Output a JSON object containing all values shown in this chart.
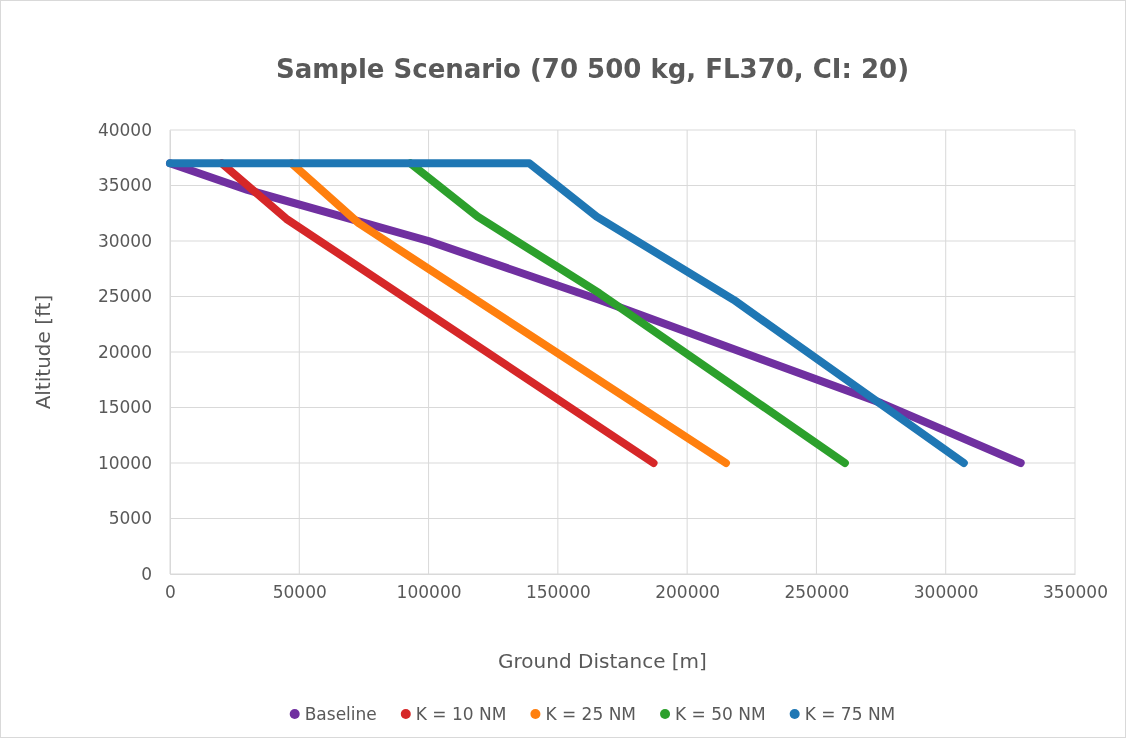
{
  "chart_data": {
    "type": "line",
    "title": "Sample Scenario (70 500 kg, FL370, CI: 20)",
    "xlabel": "Ground Distance [m]",
    "ylabel": "Altitude [ft]",
    "xlim": [
      0,
      350000
    ],
    "xticks": [
      0,
      50000,
      100000,
      150000,
      200000,
      250000,
      300000,
      350000
    ],
    "ylim": [
      0,
      40000
    ],
    "yticks": [
      0,
      5000,
      10000,
      15000,
      20000,
      25000,
      30000,
      35000,
      40000
    ],
    "grid": true,
    "legend": "bottom",
    "marker": "none",
    "line_style": "solid",
    "series": [
      {
        "name": "Baseline",
        "color": "#7030a0",
        "x": [
          0,
          30000,
          100000,
          166000,
          275000,
          329000
        ],
        "values": [
          37000,
          34600,
          30000,
          24700,
          15400,
          10000
        ]
      },
      {
        "name": "K = 10 NM",
        "color": "#d62728",
        "x": [
          20000,
          45000,
          187000
        ],
        "values": [
          37000,
          32000,
          10000
        ]
      },
      {
        "name": "K = 25 NM",
        "color": "#ff7f0e",
        "x": [
          47000,
          73000,
          215000
        ],
        "values": [
          37000,
          31600,
          10000
        ]
      },
      {
        "name": "K = 50 NM",
        "color": "#2ca02c",
        "x": [
          93000,
          119000,
          166000,
          261000
        ],
        "values": [
          37000,
          32200,
          25300,
          10000
        ]
      },
      {
        "name": "K = 75 NM",
        "color": "#1f77b4",
        "x": [
          0,
          139000,
          165000,
          218000,
          307000
        ],
        "values": [
          37000,
          37000,
          32200,
          24700,
          10000
        ]
      }
    ]
  }
}
